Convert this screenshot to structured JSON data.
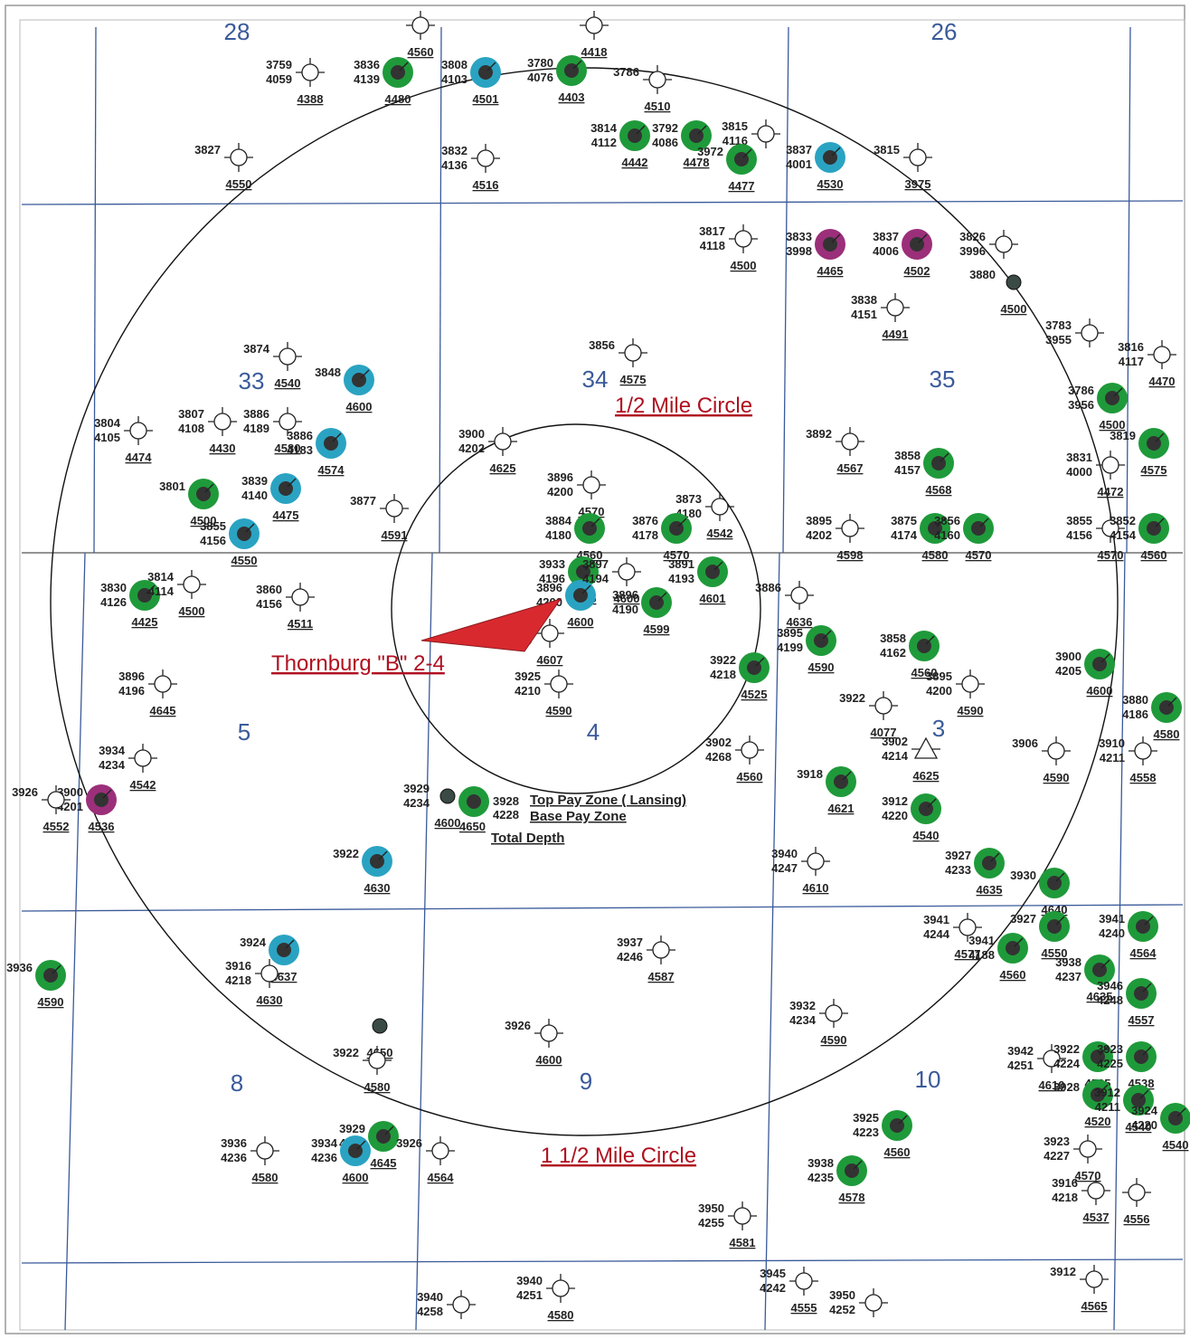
{
  "map": {
    "labels": {
      "half_mile_circle": "1/2 Mile Circle",
      "one_half_mile_circle": "1 1/2 Mile Circle",
      "subject_well": "Thornburg \"B\" 2-4",
      "legend_top": "Top Pay Zone ( Lansing)",
      "legend_base": "Base Pay Zone",
      "legend_td": "Total Depth",
      "legend_top_value": "3928",
      "legend_base_value": "4228",
      "legend_td_value": "4650"
    },
    "colors": {
      "oil": "#1f9a3a",
      "gas": "#2aa3c2",
      "dna": "#9b2f7a",
      "core": "#333333",
      "grid": "#3a5a9a",
      "arrow": "#d8292f",
      "label": "#b01020"
    },
    "sections": [
      {
        "label": "33"
      },
      {
        "label": "34"
      },
      {
        "label": "35"
      },
      {
        "label": "5"
      },
      {
        "label": "4"
      },
      {
        "label": "3"
      },
      {
        "label": "8"
      },
      {
        "label": "9"
      },
      {
        "label": "10"
      },
      {
        "label": "28"
      },
      {
        "label": "26"
      }
    ],
    "wells": [
      {
        "type": "dry",
        "top": "3759",
        "base": "4059",
        "td": "4388"
      },
      {
        "type": "oil",
        "top": "3836",
        "base": "4139",
        "td": "4480"
      },
      {
        "type": "gas",
        "top": "3808",
        "base": "4103",
        "td": "4501"
      },
      {
        "type": "oil",
        "top": "3780",
        "base": "4076",
        "td": "4403"
      },
      {
        "type": "dry",
        "top": "3786",
        "base": "",
        "td": "4510"
      },
      {
        "type": "dry",
        "top": "3827",
        "base": "",
        "td": "4550"
      },
      {
        "type": "dry",
        "top": "3832",
        "base": "4136",
        "td": "4516"
      },
      {
        "type": "oil",
        "top": "3814",
        "base": "4112",
        "td": "4442"
      },
      {
        "type": "oil",
        "top": "3792",
        "base": "4086",
        "td": "4478"
      },
      {
        "type": "dry",
        "top": "3815",
        "base": "4116",
        "td": ""
      },
      {
        "type": "oil",
        "top": "3972",
        "base": "",
        "td": "4477"
      },
      {
        "type": "gas",
        "top": "3837",
        "base": "4001",
        "td": "4530"
      },
      {
        "type": "dry",
        "top": "3815",
        "base": "",
        "td": "3975"
      },
      {
        "type": "dry",
        "top": "3817",
        "base": "4118",
        "td": "4500"
      },
      {
        "type": "dna",
        "top": "3833",
        "base": "3998",
        "td": "4465"
      },
      {
        "type": "dna",
        "top": "3837",
        "base": "4006",
        "td": "4502"
      },
      {
        "type": "dry",
        "top": "3826",
        "base": "3996",
        "td": ""
      },
      {
        "type": "core",
        "top": "3880",
        "base": "",
        "td": "4500"
      },
      {
        "type": "dry",
        "top": "3838",
        "base": "4151",
        "td": "4491"
      },
      {
        "type": "dry",
        "top": "3783",
        "base": "3955",
        "td": ""
      },
      {
        "type": "dry",
        "top": "3816",
        "base": "4117",
        "td": "4470"
      },
      {
        "type": "dry",
        "top": "3874",
        "base": "",
        "td": "4540"
      },
      {
        "type": "gas",
        "top": "3848",
        "base": "",
        "td": "4600"
      },
      {
        "type": "dry",
        "top": "3856",
        "base": "",
        "td": "4575"
      },
      {
        "type": "dry",
        "top": "3804",
        "base": "4105",
        "td": "4474"
      },
      {
        "type": "dry",
        "top": "3807",
        "base": "4108",
        "td": "4430"
      },
      {
        "type": "dry",
        "top": "3886",
        "base": "4189",
        "td": "4580"
      },
      {
        "type": "gas",
        "top": "3886",
        "base": "4183",
        "td": "4574"
      },
      {
        "type": "dry",
        "top": "3900",
        "base": "4202",
        "td": "4625"
      },
      {
        "type": "dry",
        "top": "3892",
        "base": "",
        "td": "4567"
      },
      {
        "type": "oil",
        "top": "3858",
        "base": "4157",
        "td": "4568"
      },
      {
        "type": "oil",
        "top": "3786",
        "base": "3956",
        "td": "4500"
      },
      {
        "type": "oil",
        "top": "3819",
        "base": "",
        "td": "4575"
      },
      {
        "type": "oil",
        "top": "3801",
        "base": "",
        "td": "4500"
      },
      {
        "type": "gas",
        "top": "3839",
        "base": "4140",
        "td": "4475"
      },
      {
        "type": "dry",
        "top": "3877",
        "base": "",
        "td": "4591"
      },
      {
        "type": "dry",
        "top": "3896",
        "base": "4200",
        "td": "4570"
      },
      {
        "type": "dry",
        "top": "3873",
        "base": "4180",
        "td": "4542"
      },
      {
        "type": "dry",
        "top": "3831",
        "base": "4000",
        "td": "4472"
      },
      {
        "type": "gas",
        "top": "3855",
        "base": "4156",
        "td": "4550"
      },
      {
        "type": "oil",
        "top": "3884",
        "base": "4180",
        "td": "4560"
      },
      {
        "type": "oil",
        "top": "3876",
        "base": "4178",
        "td": "4570"
      },
      {
        "type": "dry",
        "top": "3895",
        "base": "4202",
        "td": "4598"
      },
      {
        "type": "oil",
        "top": "3875",
        "base": "4174",
        "td": "4580"
      },
      {
        "type": "oil",
        "top": "3856",
        "base": "4160",
        "td": "4570"
      },
      {
        "type": "dry",
        "top": "3855",
        "base": "4156",
        "td": "4570"
      },
      {
        "type": "oil",
        "top": "3852",
        "base": "4154",
        "td": "4560"
      },
      {
        "type": "oil",
        "top": "3830",
        "base": "4126",
        "td": "4425"
      },
      {
        "type": "dry",
        "top": "3814",
        "base": "4114",
        "td": "4500"
      },
      {
        "type": "dry",
        "top": "3860",
        "base": "4156",
        "td": "4511"
      },
      {
        "type": "oil",
        "top": "3933",
        "base": "4196",
        "td": "4575"
      },
      {
        "type": "gas",
        "top": "3896",
        "base": "4200",
        "td": "4600"
      },
      {
        "type": "dry",
        "top": "3897",
        "base": "4194",
        "td": "4600"
      },
      {
        "type": "oil",
        "top": "3891",
        "base": "4193",
        "td": "4601"
      },
      {
        "type": "oil",
        "top": "3896",
        "base": "4190",
        "td": "4599"
      },
      {
        "type": "dry",
        "top": "3886",
        "base": "",
        "td": "4636"
      },
      {
        "type": "oil",
        "top": "3895",
        "base": "4199",
        "td": "4590"
      },
      {
        "type": "dry",
        "top": "3912",
        "base": "4214",
        "td": "4607"
      },
      {
        "type": "oil",
        "top": "3858",
        "base": "4162",
        "td": "4560"
      },
      {
        "type": "oil",
        "top": "3900",
        "base": "4205",
        "td": "4600"
      },
      {
        "type": "oil",
        "top": "3880",
        "base": "4186",
        "td": "4580"
      },
      {
        "type": "dry",
        "top": "3896",
        "base": "4196",
        "td": "4645"
      },
      {
        "type": "dry",
        "top": "3925",
        "base": "4210",
        "td": "4590"
      },
      {
        "type": "oil",
        "top": "3922",
        "base": "4218",
        "td": "4525"
      },
      {
        "type": "dry",
        "top": "3895",
        "base": "4200",
        "td": "4590"
      },
      {
        "type": "dry",
        "top": "3922",
        "base": "",
        "td": "4077"
      },
      {
        "type": "dry",
        "top": "3934",
        "base": "4234",
        "td": "4542"
      },
      {
        "type": "dry",
        "top": "3902",
        "base": "4268",
        "td": "4560"
      },
      {
        "type": "tri",
        "top": "3902",
        "base": "4214",
        "td": "4625"
      },
      {
        "type": "dry",
        "top": "3906",
        "base": "",
        "td": "4590"
      },
      {
        "type": "dry",
        "top": "3910",
        "base": "4211",
        "td": "4558"
      },
      {
        "type": "dna",
        "top": "3900",
        "base": "4201",
        "td": "4536"
      },
      {
        "type": "dry",
        "top": "3926",
        "base": "",
        "td": "4552"
      },
      {
        "type": "core",
        "top": "3929",
        "base": "4234",
        "td": "4600"
      },
      {
        "type": "oil",
        "top": "3918",
        "base": "",
        "td": "4621"
      },
      {
        "type": "oil",
        "top": "3912",
        "base": "4220",
        "td": "4540"
      },
      {
        "type": "gas",
        "top": "3922",
        "base": "",
        "td": "4630"
      },
      {
        "type": "dry",
        "top": "3940",
        "base": "4247",
        "td": "4610"
      },
      {
        "type": "oil",
        "top": "3927",
        "base": "4233",
        "td": "4635"
      },
      {
        "type": "oil",
        "top": "3930",
        "base": "",
        "td": "4640"
      },
      {
        "type": "dry",
        "top": "3941",
        "base": "4244",
        "td": "4577"
      },
      {
        "type": "oil",
        "top": "3941",
        "base": "4188",
        "td": "4560"
      },
      {
        "type": "oil",
        "top": "3927",
        "base": "",
        "td": "4550"
      },
      {
        "type": "oil",
        "top": "3941",
        "base": "4240",
        "td": "4564"
      },
      {
        "type": "oil",
        "top": "3936",
        "base": "",
        "td": "4590"
      },
      {
        "type": "gas",
        "top": "3924",
        "base": "",
        "td": "4637"
      },
      {
        "type": "dry",
        "top": "3916",
        "base": "4218",
        "td": "4630"
      },
      {
        "type": "dry",
        "top": "3937",
        "base": "4246",
        "td": "4587"
      },
      {
        "type": "oil",
        "top": "3938",
        "base": "4237",
        "td": "4635"
      },
      {
        "type": "oil",
        "top": "3946",
        "base": "4248",
        "td": "4557"
      },
      {
        "type": "dry",
        "top": "3932",
        "base": "4234",
        "td": "4590"
      },
      {
        "type": "core",
        "top": "",
        "base": "",
        "td": "4650"
      },
      {
        "type": "dry",
        "top": "3922",
        "base": "",
        "td": "4580"
      },
      {
        "type": "dry",
        "top": "3926",
        "base": "",
        "td": "4600"
      },
      {
        "type": "dry",
        "top": "3942",
        "base": "4251",
        "td": "4610"
      },
      {
        "type": "oil",
        "top": "3922",
        "base": "4224",
        "td": "4535"
      },
      {
        "type": "oil",
        "top": "3923",
        "base": "4225",
        "td": "4538"
      },
      {
        "type": "oil",
        "top": "3928",
        "base": "",
        "td": "4520"
      },
      {
        "type": "oil",
        "top": "3912",
        "base": "4211",
        "td": "4540"
      },
      {
        "type": "oil",
        "top": "3924",
        "base": "4220",
        "td": "4540"
      },
      {
        "type": "dry",
        "top": "3923",
        "base": "4227",
        "td": "4570"
      },
      {
        "type": "oil",
        "top": "3925",
        "base": "4223",
        "td": "4560"
      },
      {
        "type": "oil",
        "top": "3938",
        "base": "4235",
        "td": "4578"
      },
      {
        "type": "dry",
        "top": "3936",
        "base": "4236",
        "td": "4580"
      },
      {
        "type": "oil",
        "top": "3929",
        "base": "4227",
        "td": "4645"
      },
      {
        "type": "gas",
        "top": "3934",
        "base": "4236",
        "td": "4600"
      },
      {
        "type": "dry",
        "top": "3926",
        "base": "",
        "td": "4564"
      },
      {
        "type": "dry",
        "top": "3916",
        "base": "4218",
        "td": "4537"
      },
      {
        "type": "dry",
        "top": "",
        "base": "",
        "td": "4556"
      },
      {
        "type": "dry",
        "top": "3950",
        "base": "4255",
        "td": "4581"
      },
      {
        "type": "dry",
        "top": "3945",
        "base": "4242",
        "td": "4555"
      },
      {
        "type": "dry",
        "top": "3950",
        "base": "4252",
        "td": ""
      },
      {
        "type": "dry",
        "top": "3940",
        "base": "4251",
        "td": "4580"
      },
      {
        "type": "dry",
        "top": "3940",
        "base": "4258",
        "td": ""
      },
      {
        "type": "dry",
        "top": "3912",
        "base": "",
        "td": "4565"
      },
      {
        "type": "dry",
        "top": "",
        "base": "",
        "td": "4418"
      },
      {
        "type": "dry",
        "top": "",
        "base": "",
        "td": "4560"
      }
    ]
  }
}
